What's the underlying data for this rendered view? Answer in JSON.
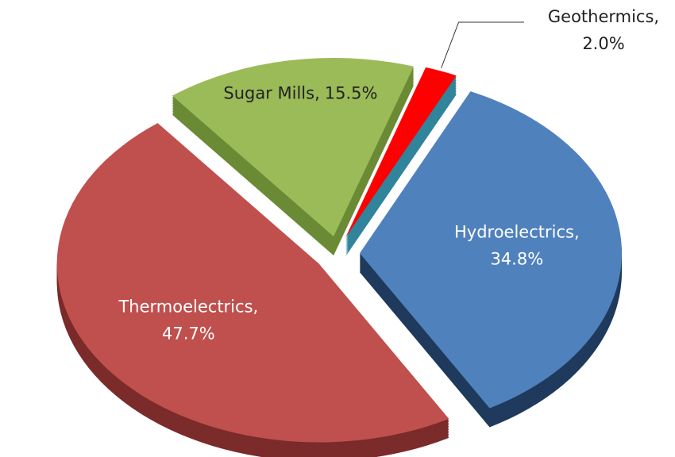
{
  "chart_data": {
    "type": "pie",
    "categories": [
      "Sugar Mills,",
      "Geothermics,",
      "Hydroelectrics,",
      "Thermoelectrics,"
    ],
    "values": [
      15.5,
      2.0,
      34.8,
      47.7
    ],
    "value_labels": [
      "15.5%",
      "2.0%",
      "34.8%",
      "47.7%"
    ],
    "colors": [
      "#9bbb59",
      "#ff0000",
      "#4f81bd",
      "#c0504d"
    ],
    "side_colors": [
      "#6b8a35",
      "#31849b",
      "#1f3a5c",
      "#7a2b2a"
    ]
  }
}
